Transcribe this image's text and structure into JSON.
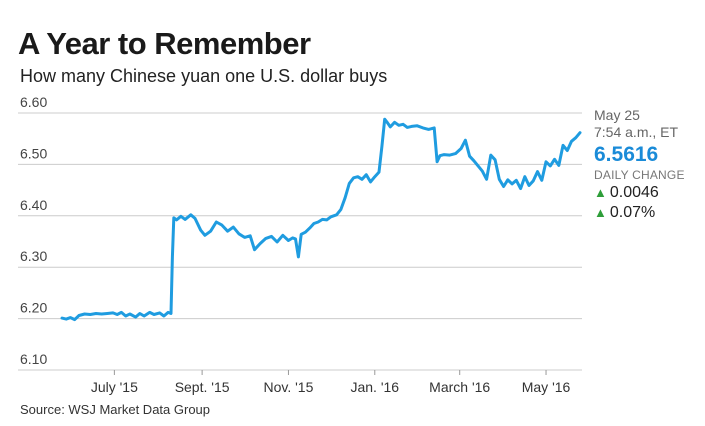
{
  "header": {
    "title": "A Year to Remember",
    "subtitle": "How many Chinese yuan one U.S. dollar buys"
  },
  "source": "Source: WSJ Market Data Group",
  "latest": {
    "date": "May 25",
    "time": "7:54 a.m., ET",
    "value": "6.5616",
    "daily_change_label": "DAILY CHANGE",
    "change_abs": "0.0046",
    "change_pct": "0.07%",
    "up_arrow_icon": "triangle-up-icon"
  },
  "colors": {
    "line": "#1f9ce0",
    "value": "#1a8bd8",
    "up": "#2e9e3a",
    "grid": "#cccccc"
  },
  "chart_data": {
    "type": "line",
    "title": "A Year to Remember",
    "subtitle": "How many Chinese yuan one U.S. dollar buys",
    "xlabel": "",
    "ylabel": "",
    "ylim": [
      6.1,
      6.6
    ],
    "xlim": [
      "2015-05-25",
      "2016-05-25"
    ],
    "yticks": [
      "6.60",
      "6.50",
      "6.40",
      "6.30",
      "6.20",
      "6.10"
    ],
    "xticks": [
      {
        "label": "July '15",
        "date": "2015-07-01"
      },
      {
        "label": "Sept. '15",
        "date": "2015-09-01"
      },
      {
        "label": "Nov. '15",
        "date": "2015-11-01"
      },
      {
        "label": "Jan. '16",
        "date": "2016-01-01"
      },
      {
        "label": "March '16",
        "date": "2016-03-01"
      },
      {
        "label": "May '16",
        "date": "2016-05-01"
      }
    ],
    "grid": "horizontal",
    "series": [
      {
        "points": [
          [
            "2015-05-25",
            6.201
          ],
          [
            "2015-05-28",
            6.199
          ],
          [
            "2015-05-31",
            6.202
          ],
          [
            "2015-06-03",
            6.198
          ],
          [
            "2015-06-06",
            6.206
          ],
          [
            "2015-06-10",
            6.209
          ],
          [
            "2015-06-14",
            6.208
          ],
          [
            "2015-06-18",
            6.21
          ],
          [
            "2015-06-22",
            6.209
          ],
          [
            "2015-06-26",
            6.21
          ],
          [
            "2015-06-30",
            6.211
          ],
          [
            "2015-07-03",
            6.208
          ],
          [
            "2015-07-06",
            6.212
          ],
          [
            "2015-07-09",
            6.205
          ],
          [
            "2015-07-12",
            6.209
          ],
          [
            "2015-07-16",
            6.203
          ],
          [
            "2015-07-19",
            6.21
          ],
          [
            "2015-07-22",
            6.205
          ],
          [
            "2015-07-26",
            6.212
          ],
          [
            "2015-07-29",
            6.208
          ],
          [
            "2015-08-02",
            6.211
          ],
          [
            "2015-08-05",
            6.205
          ],
          [
            "2015-08-08",
            6.212
          ],
          [
            "2015-08-10",
            6.21
          ],
          [
            "2015-08-11",
            6.32
          ],
          [
            "2015-08-12",
            6.396
          ],
          [
            "2015-08-14",
            6.392
          ],
          [
            "2015-08-17",
            6.399
          ],
          [
            "2015-08-20",
            6.393
          ],
          [
            "2015-08-24",
            6.402
          ],
          [
            "2015-08-27",
            6.395
          ],
          [
            "2015-08-31",
            6.372
          ],
          [
            "2015-09-03",
            6.362
          ],
          [
            "2015-09-07",
            6.37
          ],
          [
            "2015-09-11",
            6.388
          ],
          [
            "2015-09-15",
            6.382
          ],
          [
            "2015-09-19",
            6.37
          ],
          [
            "2015-09-23",
            6.378
          ],
          [
            "2015-09-27",
            6.365
          ],
          [
            "2015-10-01",
            6.358
          ],
          [
            "2015-10-05",
            6.361
          ],
          [
            "2015-10-08",
            6.334
          ],
          [
            "2015-10-12",
            6.346
          ],
          [
            "2015-10-16",
            6.356
          ],
          [
            "2015-10-20",
            6.36
          ],
          [
            "2015-10-24",
            6.349
          ],
          [
            "2015-10-28",
            6.362
          ],
          [
            "2015-11-01",
            6.352
          ],
          [
            "2015-11-04",
            6.357
          ],
          [
            "2015-11-06",
            6.355
          ],
          [
            "2015-11-08",
            6.32
          ],
          [
            "2015-11-10",
            6.364
          ],
          [
            "2015-11-13",
            6.368
          ],
          [
            "2015-11-16",
            6.376
          ],
          [
            "2015-11-19",
            6.385
          ],
          [
            "2015-11-22",
            6.388
          ],
          [
            "2015-11-25",
            6.393
          ],
          [
            "2015-11-28",
            6.392
          ],
          [
            "2015-12-01",
            6.398
          ],
          [
            "2015-12-05",
            6.402
          ],
          [
            "2015-12-08",
            6.412
          ],
          [
            "2015-12-11",
            6.435
          ],
          [
            "2015-12-14",
            6.463
          ],
          [
            "2015-12-17",
            6.474
          ],
          [
            "2015-12-20",
            6.476
          ],
          [
            "2015-12-23",
            6.471
          ],
          [
            "2015-12-26",
            6.48
          ],
          [
            "2015-12-29",
            6.466
          ],
          [
            "2016-01-01",
            6.476
          ],
          [
            "2016-01-04",
            6.485
          ],
          [
            "2016-01-06",
            6.535
          ],
          [
            "2016-01-08",
            6.588
          ],
          [
            "2016-01-10",
            6.581
          ],
          [
            "2016-01-12",
            6.573
          ],
          [
            "2016-01-15",
            6.582
          ],
          [
            "2016-01-18",
            6.576
          ],
          [
            "2016-01-21",
            6.578
          ],
          [
            "2016-01-24",
            6.572
          ],
          [
            "2016-01-27",
            6.574
          ],
          [
            "2016-01-31",
            6.575
          ],
          [
            "2016-02-04",
            6.571
          ],
          [
            "2016-02-08",
            6.568
          ],
          [
            "2016-02-12",
            6.571
          ],
          [
            "2016-02-14",
            6.505
          ],
          [
            "2016-02-16",
            6.517
          ],
          [
            "2016-02-19",
            6.519
          ],
          [
            "2016-02-23",
            6.518
          ],
          [
            "2016-02-27",
            6.521
          ],
          [
            "2016-03-02",
            6.531
          ],
          [
            "2016-03-05",
            6.547
          ],
          [
            "2016-03-08",
            6.516
          ],
          [
            "2016-03-11",
            6.507
          ],
          [
            "2016-03-14",
            6.497
          ],
          [
            "2016-03-17",
            6.487
          ],
          [
            "2016-03-20",
            6.471
          ],
          [
            "2016-03-23",
            6.518
          ],
          [
            "2016-03-26",
            6.509
          ],
          [
            "2016-03-29",
            6.471
          ],
          [
            "2016-04-01",
            6.457
          ],
          [
            "2016-04-04",
            6.47
          ],
          [
            "2016-04-07",
            6.462
          ],
          [
            "2016-04-10",
            6.469
          ],
          [
            "2016-04-13",
            6.453
          ],
          [
            "2016-04-16",
            6.476
          ],
          [
            "2016-04-19",
            6.459
          ],
          [
            "2016-04-22",
            6.468
          ],
          [
            "2016-04-25",
            6.486
          ],
          [
            "2016-04-28",
            6.469
          ],
          [
            "2016-05-01",
            6.505
          ],
          [
            "2016-05-04",
            6.497
          ],
          [
            "2016-05-07",
            6.51
          ],
          [
            "2016-05-10",
            6.498
          ],
          [
            "2016-05-13",
            6.537
          ],
          [
            "2016-05-16",
            6.527
          ],
          [
            "2016-05-19",
            6.545
          ],
          [
            "2016-05-22",
            6.552
          ],
          [
            "2016-05-25",
            6.5616
          ]
        ]
      }
    ]
  }
}
